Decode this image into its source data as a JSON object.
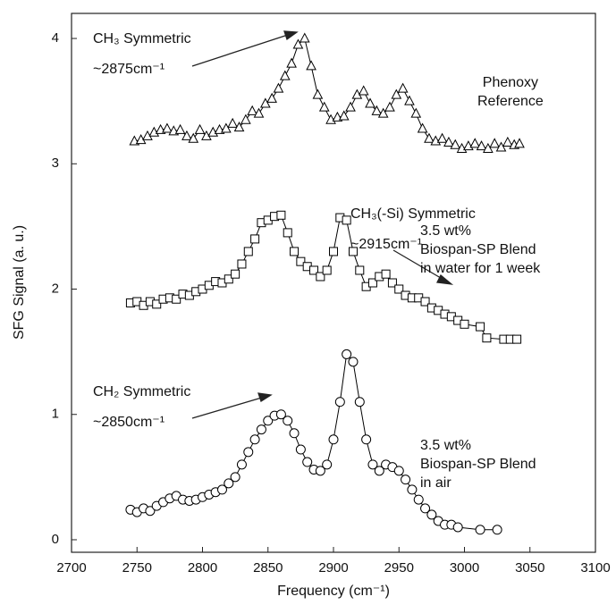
{
  "chart_data": {
    "type": "scatter",
    "xlabel": "Frequency (cm⁻¹)",
    "ylabel": "SFG Signal (a. u.)",
    "xlim": [
      2700,
      3100
    ],
    "xticks": [
      2700,
      2750,
      2800,
      2850,
      2900,
      2950,
      3000,
      3050,
      3100
    ],
    "ylim": [
      -0.1,
      4.2
    ],
    "yticks": [
      0,
      1,
      2,
      3,
      4
    ],
    "grid": false,
    "connect": true,
    "annotations": [
      "CH₃ Symmetric\n~2875cm⁻¹",
      "CH₃(-Si) Symmetric\n~2915cm⁻¹",
      "CH₂ Symmetric\n~2850cm⁻¹"
    ],
    "series": [
      {
        "name": "Phenoxy\nReference",
        "color": "#000000",
        "marker": "triangle",
        "x": [
          2748,
          2753,
          2758,
          2763,
          2768,
          2773,
          2778,
          2783,
          2788,
          2793,
          2798,
          2803,
          2808,
          2813,
          2818,
          2823,
          2828,
          2833,
          2838,
          2843,
          2848,
          2853,
          2858,
          2863,
          2868,
          2873,
          2878,
          2883,
          2888,
          2893,
          2898,
          2903,
          2908,
          2913,
          2918,
          2923,
          2928,
          2933,
          2938,
          2943,
          2948,
          2953,
          2958,
          2963,
          2968,
          2973,
          2978,
          2983,
          2988,
          2993,
          2998,
          3003,
          3008,
          3013,
          3018,
          3023,
          3028,
          3033,
          3038,
          3042
        ],
        "values": [
          3.18,
          3.19,
          3.22,
          3.25,
          3.27,
          3.28,
          3.26,
          3.27,
          3.22,
          3.2,
          3.27,
          3.22,
          3.25,
          3.27,
          3.28,
          3.32,
          3.29,
          3.35,
          3.42,
          3.4,
          3.48,
          3.52,
          3.6,
          3.7,
          3.8,
          3.95,
          4.0,
          3.78,
          3.55,
          3.45,
          3.35,
          3.37,
          3.38,
          3.45,
          3.55,
          3.58,
          3.48,
          3.42,
          3.4,
          3.45,
          3.55,
          3.6,
          3.5,
          3.4,
          3.28,
          3.2,
          3.18,
          3.2,
          3.17,
          3.15,
          3.12,
          3.14,
          3.16,
          3.14,
          3.12,
          3.16,
          3.13,
          3.17,
          3.15,
          3.16
        ]
      },
      {
        "name": "3.5 wt%\nBiospan-SP Blend\nin water for 1 week",
        "color": "#000000",
        "marker": "square",
        "x": [
          2745,
          2750,
          2755,
          2760,
          2765,
          2770,
          2775,
          2780,
          2785,
          2790,
          2795,
          2800,
          2805,
          2810,
          2815,
          2820,
          2825,
          2830,
          2835,
          2840,
          2845,
          2850,
          2855,
          2860,
          2865,
          2870,
          2875,
          2880,
          2885,
          2890,
          2895,
          2900,
          2905,
          2910,
          2915,
          2920,
          2925,
          2930,
          2935,
          2940,
          2945,
          2950,
          2955,
          2960,
          2965,
          2970,
          2975,
          2980,
          2985,
          2990,
          2995,
          3000,
          3012,
          3017,
          3030,
          3035,
          3040
        ],
        "values": [
          1.89,
          1.9,
          1.87,
          1.9,
          1.88,
          1.92,
          1.93,
          1.92,
          1.96,
          1.95,
          1.98,
          2.0,
          2.03,
          2.06,
          2.05,
          2.08,
          2.12,
          2.2,
          2.3,
          2.4,
          2.53,
          2.55,
          2.58,
          2.59,
          2.45,
          2.3,
          2.22,
          2.18,
          2.15,
          2.1,
          2.15,
          2.3,
          2.57,
          2.55,
          2.3,
          2.15,
          2.02,
          2.05,
          2.1,
          2.12,
          2.05,
          2.0,
          1.95,
          1.93,
          1.93,
          1.9,
          1.85,
          1.83,
          1.8,
          1.78,
          1.75,
          1.72,
          1.7,
          1.61,
          1.6,
          1.6,
          1.6
        ]
      },
      {
        "name": "3.5 wt%\nBiospan-SP Blend\nin air",
        "color": "#000000",
        "marker": "circle",
        "x": [
          2745,
          2750,
          2755,
          2760,
          2765,
          2770,
          2775,
          2780,
          2785,
          2790,
          2795,
          2800,
          2805,
          2810,
          2815,
          2820,
          2825,
          2830,
          2835,
          2840,
          2845,
          2850,
          2855,
          2860,
          2865,
          2870,
          2875,
          2880,
          2885,
          2890,
          2895,
          2900,
          2905,
          2910,
          2915,
          2920,
          2925,
          2930,
          2935,
          2940,
          2945,
          2950,
          2955,
          2960,
          2965,
          2970,
          2975,
          2980,
          2985,
          2990,
          2995,
          3012,
          3025
        ],
        "values": [
          0.24,
          0.22,
          0.25,
          0.23,
          0.27,
          0.3,
          0.33,
          0.35,
          0.32,
          0.31,
          0.32,
          0.34,
          0.36,
          0.38,
          0.4,
          0.45,
          0.5,
          0.6,
          0.7,
          0.8,
          0.88,
          0.95,
          0.99,
          1.0,
          0.95,
          0.85,
          0.72,
          0.62,
          0.56,
          0.55,
          0.6,
          0.8,
          1.1,
          1.48,
          1.42,
          1.1,
          0.8,
          0.6,
          0.55,
          0.6,
          0.58,
          0.55,
          0.48,
          0.4,
          0.32,
          0.25,
          0.2,
          0.15,
          0.12,
          0.12,
          0.1,
          0.08,
          0.08
        ]
      }
    ]
  }
}
